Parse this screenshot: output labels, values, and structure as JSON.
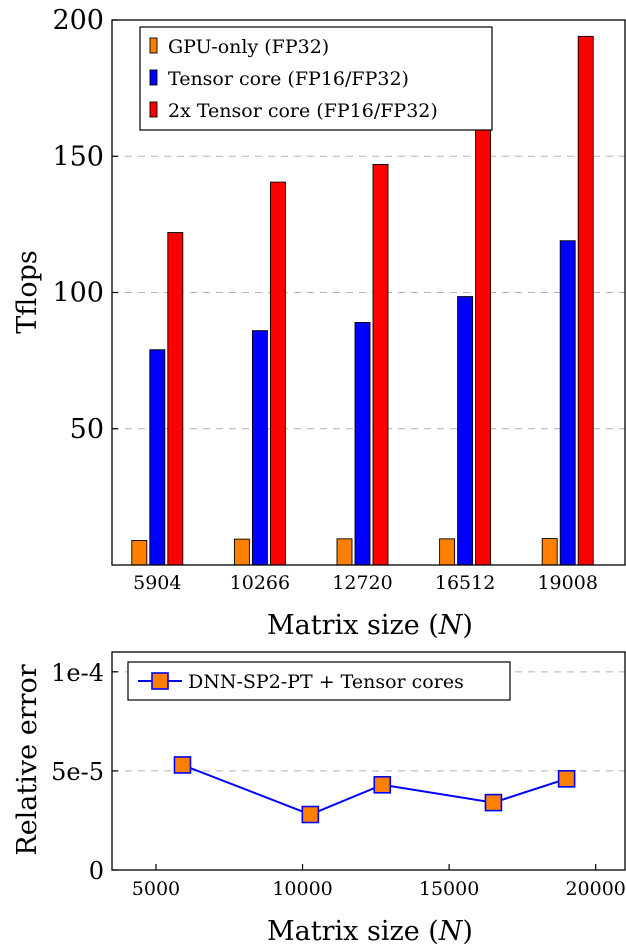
{
  "chart_data": [
    {
      "type": "bar",
      "xlabel": "Matrix size (N)",
      "ylabel": "Tflops",
      "ylim": [
        0,
        200
      ],
      "yticks": [
        50,
        100,
        150,
        200
      ],
      "categories": [
        "5904",
        "10266",
        "12720",
        "16512",
        "19008"
      ],
      "series": [
        {
          "name": "GPU-only (FP32)",
          "color": "#ff8000",
          "values": [
            9,
            9.5,
            9.6,
            9.6,
            9.7
          ]
        },
        {
          "name": "Tensor core (FP16/FP32)",
          "color": "#0000ff",
          "values": [
            79,
            86,
            89,
            98.5,
            119
          ]
        },
        {
          "name": "2x Tensor core (FP16/FP32)",
          "color": "#ff0000",
          "values": [
            122,
            140.5,
            147,
            163,
            194
          ]
        }
      ],
      "grid": "horizontal dashed",
      "legend_position": "top-left"
    },
    {
      "type": "line",
      "xlabel": "Matrix size (N)",
      "ylabel": "Relative error",
      "xlim": [
        3500,
        21000
      ],
      "ylim": [
        0,
        0.00011
      ],
      "xticks": [
        5000,
        10000,
        15000,
        20000
      ],
      "yticks": [
        {
          "value": 0,
          "label": "0"
        },
        {
          "value": 5e-05,
          "label": "5e-5"
        },
        {
          "value": 0.0001,
          "label": "1e-4"
        }
      ],
      "series": [
        {
          "name": "DNN-SP2-PT + Tensor cores",
          "line_color": "#0000ff",
          "marker_color": "#ff8000",
          "marker": "square",
          "x": [
            5904,
            10266,
            12720,
            16512,
            19008
          ],
          "y": [
            5.3e-05,
            2.8e-05,
            4.3e-05,
            3.4e-05,
            4.6e-05
          ]
        }
      ],
      "grid": "horizontal dashed",
      "legend_position": "top-left"
    }
  ]
}
